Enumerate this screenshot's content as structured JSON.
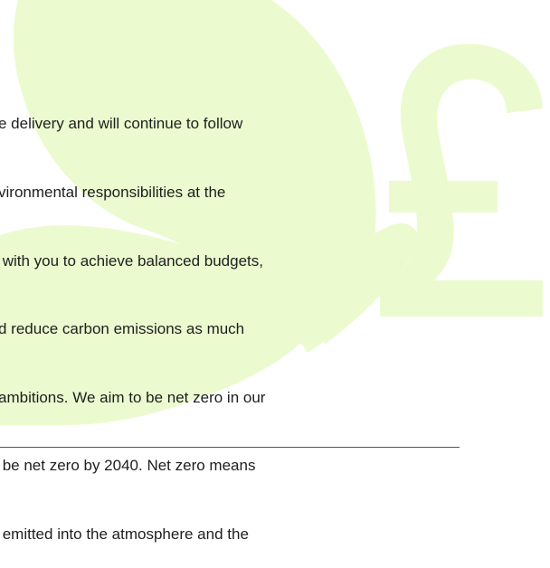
{
  "paragraph": {
    "lines": [
      "e delivery and will continue to follow",
      "vironmental responsibilities at the",
      " with you to achieve balanced budgets,",
      "d reduce carbon emissions as much",
      "ambitions. We aim to be net zero in our",
      " be net zero by 2040. Net zero means",
      " emitted into the atmosphere and the"
    ]
  }
}
